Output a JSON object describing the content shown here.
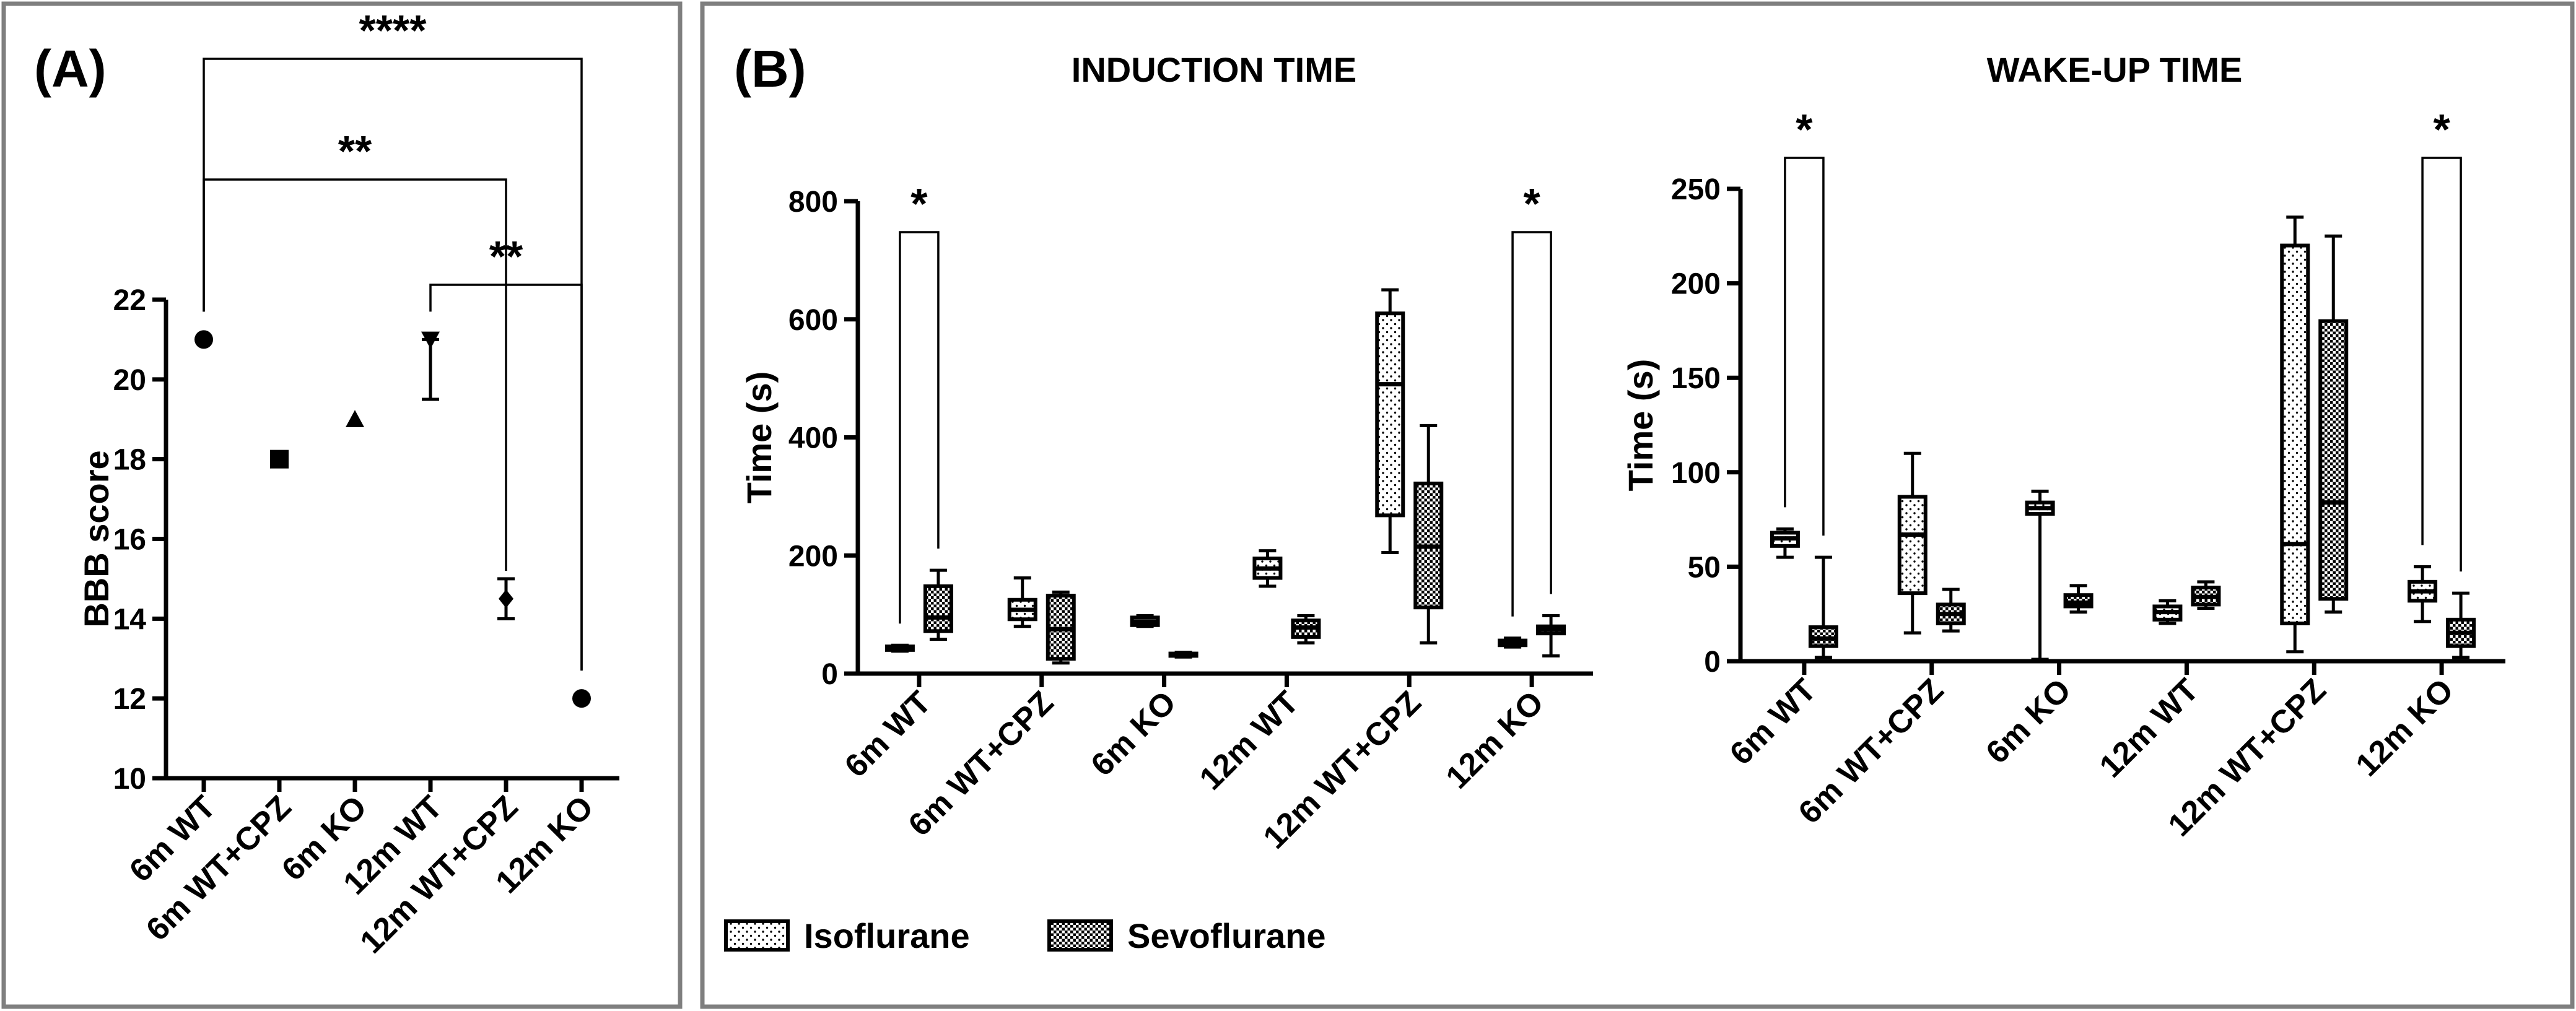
{
  "chart_data": [
    {
      "panel": "(A)",
      "type": "scatter",
      "title": "",
      "xlabel": "",
      "ylabel": "BBB score",
      "ylim": [
        10,
        22
      ],
      "yticks": [
        10,
        12,
        14,
        16,
        18,
        20,
        22
      ],
      "categories": [
        "6m WT",
        "6m WT+CPZ",
        "6m KO",
        "12m WT",
        "12m WT+CPZ",
        "12m KO"
      ],
      "markers": [
        "circle",
        "square",
        "triangle-up",
        "triangle-down",
        "diamond",
        "circle"
      ],
      "series": [
        {
          "name": "BBB score",
          "values": [
            21,
            18,
            19,
            21,
            14.5,
            12
          ],
          "err_low": [
            21,
            18,
            19,
            19.5,
            14,
            12
          ],
          "err_high": [
            21,
            18,
            19,
            21,
            15,
            12
          ]
        }
      ],
      "annotations": [
        {
          "from": "6m WT",
          "to": "12m KO",
          "label": "****"
        },
        {
          "from": "6m WT",
          "to": "12m WT+CPZ",
          "label": "**"
        },
        {
          "from": "12m WT",
          "to": "12m KO",
          "label": "**"
        }
      ]
    },
    {
      "panel": "(B)",
      "type": "box",
      "title": "INDUCTION TIME",
      "xlabel": "",
      "ylabel": "Time (s)",
      "ylim": [
        0,
        800
      ],
      "yticks": [
        0,
        200,
        400,
        600,
        800
      ],
      "categories": [
        "6m WT",
        "6m WT+CPZ",
        "6m KO",
        "12m WT",
        "12m WT+CPZ",
        "12m KO"
      ],
      "series": [
        {
          "name": "Isoflurane",
          "boxes": [
            {
              "min": 38,
              "q1": 40,
              "median": 43,
              "q3": 46,
              "max": 48
            },
            {
              "min": 80,
              "q1": 92,
              "median": 108,
              "q3": 125,
              "max": 162
            },
            {
              "min": 80,
              "q1": 82,
              "median": 88,
              "q3": 95,
              "max": 98
            },
            {
              "min": 148,
              "q1": 162,
              "median": 178,
              "q3": 195,
              "max": 208
            },
            {
              "min": 205,
              "q1": 268,
              "median": 490,
              "q3": 610,
              "max": 650
            },
            {
              "min": 45,
              "q1": 48,
              "median": 52,
              "q3": 56,
              "max": 60
            }
          ]
        },
        {
          "name": "Sevoflurane",
          "boxes": [
            {
              "min": 58,
              "q1": 72,
              "median": 95,
              "q3": 148,
              "max": 175
            },
            {
              "min": 18,
              "q1": 25,
              "median": 75,
              "q3": 132,
              "max": 138
            },
            {
              "min": 28,
              "q1": 30,
              "median": 32,
              "q3": 34,
              "max": 36
            },
            {
              "min": 52,
              "q1": 62,
              "median": 78,
              "q3": 90,
              "max": 98
            },
            {
              "min": 52,
              "q1": 112,
              "median": 215,
              "q3": 322,
              "max": 420
            },
            {
              "min": 30,
              "q1": 68,
              "median": 75,
              "q3": 80,
              "max": 98
            }
          ]
        }
      ],
      "annotations": [
        {
          "category": "6m WT",
          "label": "*"
        },
        {
          "category": "12m KO",
          "label": "*"
        }
      ]
    },
    {
      "panel": "(B)",
      "type": "box",
      "title": "WAKE-UP TIME",
      "xlabel": "",
      "ylabel": "Time (s)",
      "ylim": [
        0,
        250
      ],
      "yticks": [
        0,
        50,
        100,
        150,
        200,
        250
      ],
      "categories": [
        "6m WT",
        "6m WT+CPZ",
        "6m KO",
        "12m WT",
        "12m WT+CPZ",
        "12m KO"
      ],
      "series": [
        {
          "name": "Isoflurane",
          "boxes": [
            {
              "min": 55,
              "q1": 61,
              "median": 65,
              "q3": 68,
              "max": 70
            },
            {
              "min": 15,
              "q1": 36,
              "median": 67,
              "q3": 87,
              "max": 110
            },
            {
              "min": 1,
              "q1": 78,
              "median": 81,
              "q3": 84,
              "max": 90
            },
            {
              "min": 20,
              "q1": 22,
              "median": 26,
              "q3": 29,
              "max": 32
            },
            {
              "min": 5,
              "q1": 20,
              "median": 62,
              "q3": 220,
              "max": 235
            },
            {
              "min": 21,
              "q1": 32,
              "median": 37,
              "q3": 42,
              "max": 50
            }
          ]
        },
        {
          "name": "Sevoflurane",
          "boxes": [
            {
              "min": 2,
              "q1": 8,
              "median": 12,
              "q3": 18,
              "max": 55
            },
            {
              "min": 16,
              "q1": 20,
              "median": 25,
              "q3": 30,
              "max": 38
            },
            {
              "min": 26,
              "q1": 29,
              "median": 31,
              "q3": 35,
              "max": 40
            },
            {
              "min": 28,
              "q1": 30,
              "median": 34,
              "q3": 39,
              "max": 42
            },
            {
              "min": 26,
              "q1": 33,
              "median": 84,
              "q3": 180,
              "max": 225
            },
            {
              "min": 2,
              "q1": 8,
              "median": 15,
              "q3": 22,
              "max": 36
            }
          ]
        }
      ],
      "annotations": [
        {
          "category": "6m WT",
          "label": "*"
        },
        {
          "category": "12m KO",
          "label": "*"
        }
      ]
    }
  ],
  "legend": {
    "items": [
      {
        "label": "Isoflurane",
        "pattern": "dots"
      },
      {
        "label": "Sevoflurane",
        "pattern": "checker"
      }
    ],
    "placement": "bottom-left"
  }
}
